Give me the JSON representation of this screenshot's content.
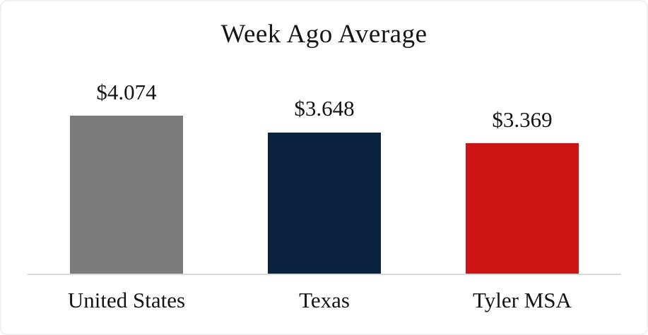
{
  "chart_data": {
    "type": "bar",
    "title": "Week Ago Average",
    "categories": [
      "United States",
      "Texas",
      "Tyler MSA"
    ],
    "values": [
      4.074,
      3.648,
      3.369
    ],
    "value_labels": [
      "$4.074",
      "$3.648",
      "$3.369"
    ],
    "bar_colors": [
      "#7b7b7b",
      "#0c2340",
      "#ce1515"
    ],
    "ylim": [
      0,
      4.074
    ],
    "xlabel": "",
    "ylabel": "",
    "grid": false,
    "legend": false,
    "axis_line_color": "#d9d9d9",
    "text_color": "#141414"
  }
}
